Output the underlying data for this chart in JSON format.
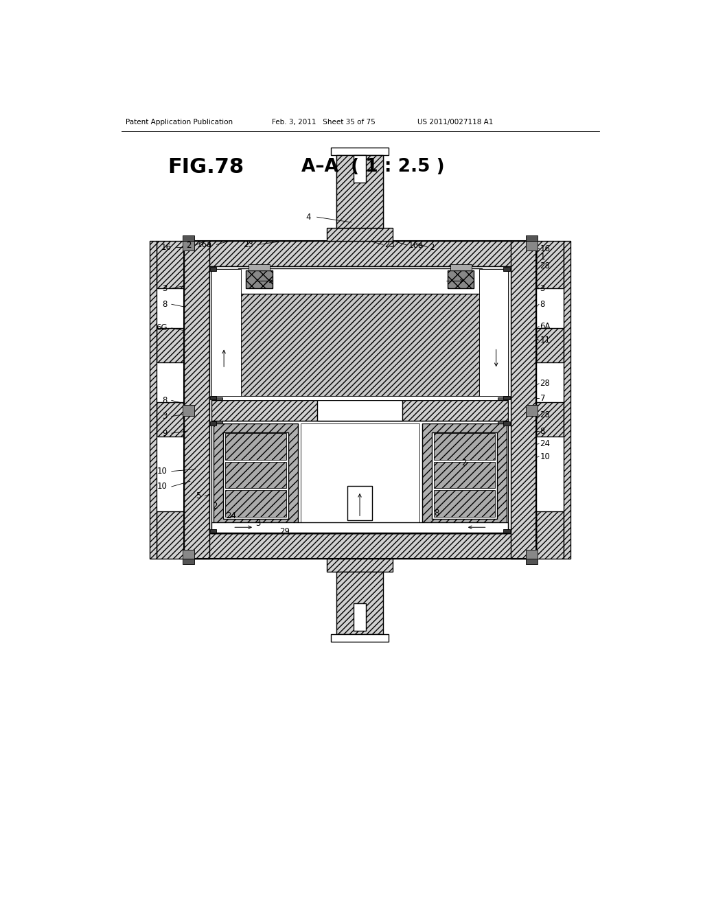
{
  "header_left": "Patent Application Publication",
  "header_center": "Feb. 3, 2011   Sheet 35 of 75",
  "header_right": "US 2011/0027118 A1",
  "title": "FIG.78",
  "subtitle": "A–A  ( 1 : 2.5 )",
  "bg_color": "#ffffff",
  "fig_width": 10.24,
  "fig_height": 13.2
}
